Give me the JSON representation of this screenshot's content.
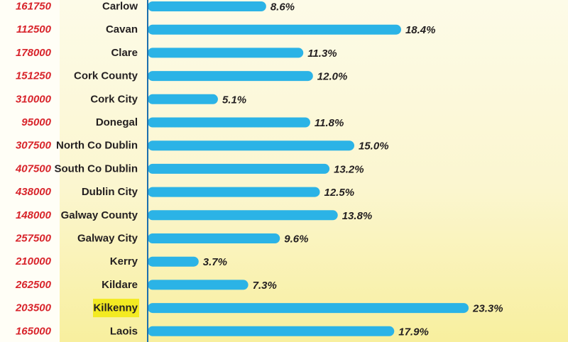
{
  "chart_data": {
    "type": "bar",
    "orientation": "horizontal",
    "categories": [
      "Carlow",
      "Cavan",
      "Clare",
      "Cork County",
      "Cork City",
      "Donegal",
      "North Co Dublin",
      "South Co Dublin",
      "Dublin City",
      "Galway County",
      "Galway City",
      "Kerry",
      "Kildare",
      "Kilkenny",
      "Laois"
    ],
    "prices": [
      "161750",
      "112500",
      "178000",
      "151250",
      "310000",
      "95000",
      "307500",
      "407500",
      "438000",
      "148000",
      "257500",
      "210000",
      "262500",
      "203500",
      "165000"
    ],
    "values": [
      8.6,
      18.4,
      11.3,
      12.0,
      5.1,
      11.8,
      15.0,
      13.2,
      12.5,
      13.8,
      9.6,
      3.7,
      7.3,
      23.3,
      17.9
    ],
    "value_labels": [
      "8.6%",
      "18.4%",
      "11.3%",
      "12.0%",
      "5.1%",
      "11.8%",
      "15.0%",
      "13.2%",
      "12.5%",
      "13.8%",
      "9.6%",
      "3.7%",
      "7.3%",
      "23.3%",
      "17.9%"
    ],
    "highlighted_category": "Kilkenny",
    "colors": {
      "bar": "#2bb3e6",
      "price": "#d8242b",
      "text": "#231f20",
      "highlight": "#f3ea22",
      "axis": "#1b6fae",
      "price_column_bg": "#fffef6"
    }
  }
}
